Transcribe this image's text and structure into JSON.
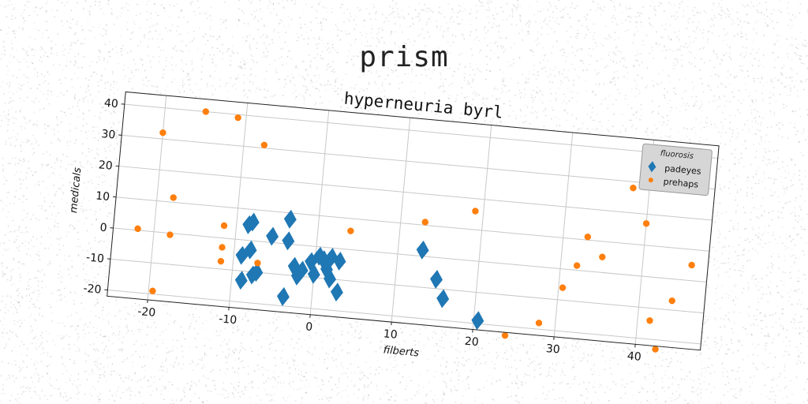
{
  "suptitle": "prism",
  "chart_data": {
    "type": "scatter",
    "title": "hyperneuria byrl",
    "xlabel": "filberts",
    "ylabel": "medicals",
    "xlim": [
      -25,
      48
    ],
    "ylim": [
      -22,
      44
    ],
    "xticks": [
      -20,
      -10,
      0,
      10,
      20,
      30,
      40
    ],
    "yticks": [
      -20,
      -10,
      0,
      10,
      20,
      30,
      40
    ],
    "grid": true,
    "legend": {
      "title": "fluorosis",
      "placement": "upper-right"
    },
    "series": [
      {
        "name": "padeyes",
        "marker": "diamond",
        "color": "#1f77b4",
        "points": [
          [
            -8.5,
            5
          ],
          [
            -8,
            6
          ],
          [
            -5.5,
            2
          ],
          [
            -3.5,
            8
          ],
          [
            -3.5,
            1
          ],
          [
            -9,
            -5
          ],
          [
            -8,
            -3
          ],
          [
            -8.8,
            -13
          ],
          [
            -7.5,
            -11
          ],
          [
            -7,
            -10
          ],
          [
            -3.5,
            -17
          ],
          [
            -2.5,
            -7
          ],
          [
            -2,
            -10
          ],
          [
            -1.5,
            -8
          ],
          [
            -0.5,
            -5
          ],
          [
            0.5,
            -3
          ],
          [
            1,
            -4
          ],
          [
            0,
            -9
          ],
          [
            1.5,
            -7
          ],
          [
            2,
            -3
          ],
          [
            3,
            -4
          ],
          [
            2,
            -10
          ],
          [
            3,
            -14
          ],
          [
            13,
            2
          ],
          [
            15,
            -7
          ],
          [
            16,
            -13
          ],
          [
            20.5,
            -19
          ]
        ]
      },
      {
        "name": "prehaps",
        "marker": "circle",
        "color": "#ff7f0e",
        "points": [
          [
            -15,
            40
          ],
          [
            -11,
            39
          ],
          [
            -20,
            32
          ],
          [
            -7.5,
            31
          ],
          [
            -18,
            11.5
          ],
          [
            -11.5,
            4
          ],
          [
            -22,
            0.5
          ],
          [
            -18,
            -0.5
          ],
          [
            -11.5,
            -3
          ],
          [
            -11.5,
            -7.5
          ],
          [
            -7,
            -7
          ],
          [
            -19.5,
            -19
          ],
          [
            4,
            6
          ],
          [
            13,
            11
          ],
          [
            19,
            16
          ],
          [
            24,
            -23
          ],
          [
            28,
            -18
          ],
          [
            30.5,
            -6
          ],
          [
            32,
            1.5
          ],
          [
            33,
            11
          ],
          [
            35,
            5
          ],
          [
            38,
            28
          ],
          [
            40,
            17
          ],
          [
            41.5,
            -14
          ],
          [
            42.5,
            -23
          ],
          [
            44,
            -7
          ],
          [
            46,
            5
          ]
        ]
      }
    ]
  },
  "icons": {
    "legend_padeyes_marker": "diamond-marker-icon",
    "legend_prehaps_marker": "circle-marker-icon"
  }
}
